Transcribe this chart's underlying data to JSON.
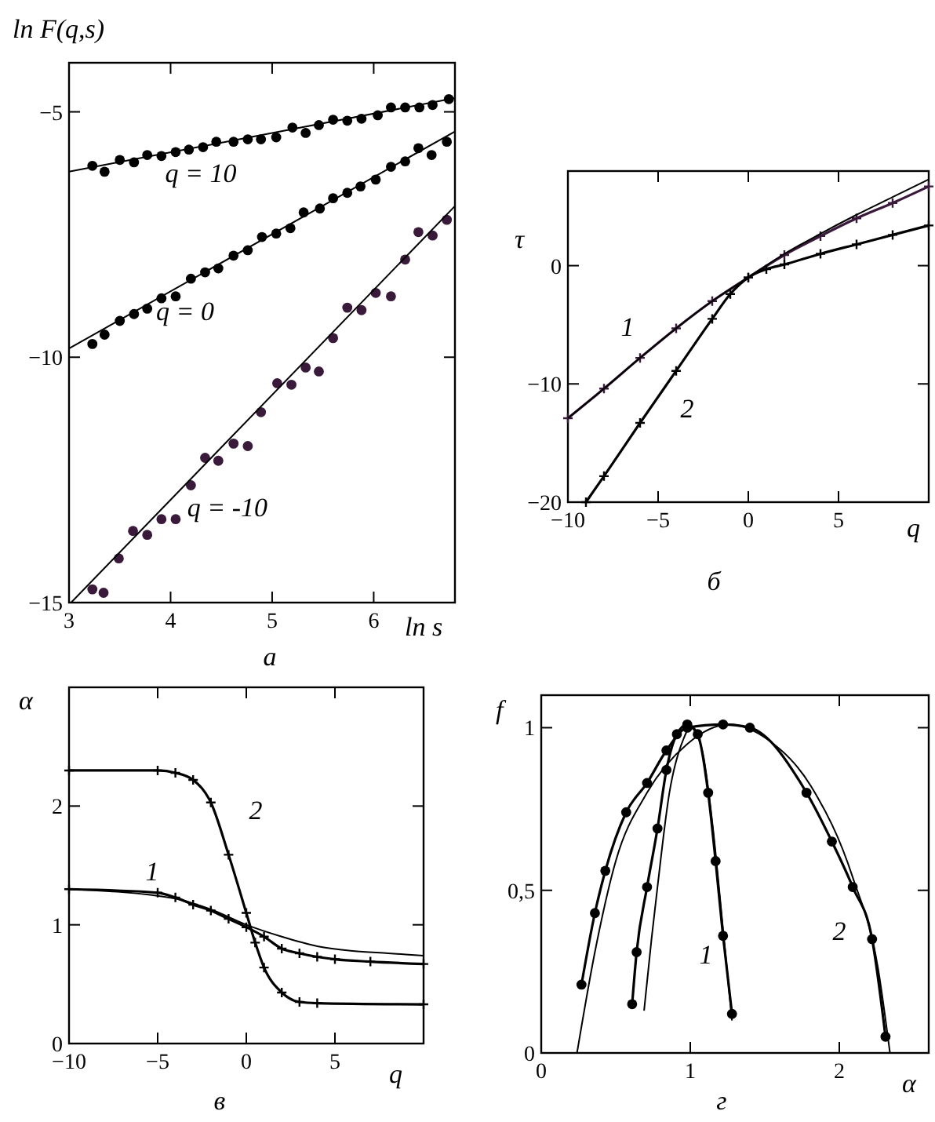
{
  "chart_data": [
    {
      "type": "scatter",
      "xlabel": "ln s",
      "ylabel": "ln F(q,s)",
      "xlim": [
        3,
        6.8
      ],
      "ylim": [
        -15,
        -4
      ],
      "xticks": [
        3,
        4,
        5,
        6
      ],
      "yticks": [
        -15,
        -10,
        -5
      ],
      "annotations": [
        "q = 10",
        "q = 0",
        "q = -10",
        "а"
      ],
      "series": [
        {
          "marker": "circle",
          "color": "#000000",
          "x": [
            3.23,
            3.35,
            3.5,
            3.64,
            3.77,
            3.91,
            4.05,
            4.18,
            4.32,
            4.45,
            4.62,
            4.76,
            4.89,
            5.04,
            5.2,
            5.33,
            5.46,
            5.6,
            5.74,
            5.88,
            6.04,
            6.17,
            6.31,
            6.45,
            6.58,
            6.74
          ],
          "values": [
            -6.1,
            -6.22,
            -5.98,
            -6.03,
            -5.88,
            -5.9,
            -5.82,
            -5.77,
            -5.72,
            -5.61,
            -5.61,
            -5.56,
            -5.56,
            -5.52,
            -5.32,
            -5.43,
            -5.27,
            -5.16,
            -5.18,
            -5.14,
            -5.07,
            -4.91,
            -4.91,
            -4.91,
            -4.86,
            -4.74
          ]
        },
        {
          "type": "line",
          "marker": "none",
          "color": "#000000",
          "x": [
            3,
            6.8
          ],
          "values": [
            -6.22,
            -4.72
          ]
        },
        {
          "marker": "circle",
          "color": "#000000",
          "x": [
            3.23,
            3.35,
            3.5,
            3.64,
            3.77,
            3.91,
            4.05,
            4.2,
            4.34,
            4.47,
            4.62,
            4.76,
            4.9,
            5.04,
            5.18,
            5.31,
            5.47,
            5.6,
            5.74,
            5.87,
            6.02,
            6.17,
            6.31,
            6.44,
            6.57,
            6.72
          ],
          "values": [
            -9.73,
            -9.54,
            -9.26,
            -9.12,
            -9.01,
            -8.8,
            -8.76,
            -8.4,
            -8.27,
            -8.19,
            -7.93,
            -7.82,
            -7.55,
            -7.48,
            -7.37,
            -7.05,
            -6.97,
            -6.76,
            -6.65,
            -6.52,
            -6.38,
            -6.12,
            -6.01,
            -5.74,
            -5.88,
            -5.61
          ]
        },
        {
          "type": "line",
          "marker": "none",
          "color": "#000000",
          "x": [
            3,
            6.8
          ],
          "values": [
            -9.82,
            -5.4
          ]
        },
        {
          "marker": "circle",
          "color": "#3a1a3a",
          "x": [
            3.23,
            3.34,
            3.49,
            3.63,
            3.77,
            3.91,
            4.05,
            4.2,
            4.34,
            4.47,
            4.62,
            4.76,
            4.89,
            5.05,
            5.19,
            5.33,
            5.46,
            5.6,
            5.74,
            5.88,
            6.02,
            6.17,
            6.31,
            6.44,
            6.58,
            6.72
          ],
          "values": [
            -14.73,
            -14.8,
            -14.1,
            -13.54,
            -13.62,
            -13.3,
            -13.3,
            -12.61,
            -12.05,
            -12.11,
            -11.76,
            -11.81,
            -11.12,
            -10.53,
            -10.56,
            -10.21,
            -10.29,
            -9.61,
            -8.99,
            -9.04,
            -8.69,
            -8.76,
            -8.01,
            -7.45,
            -7.52,
            -7.2
          ]
        },
        {
          "type": "line",
          "marker": "none",
          "color": "#000000",
          "x": [
            3.02,
            6.8
          ],
          "values": [
            -15,
            -6.92
          ]
        }
      ]
    },
    {
      "type": "line",
      "xlabel": "q",
      "ylabel": "τ",
      "xlim": [
        -10,
        10
      ],
      "ylim": [
        -20,
        8
      ],
      "xticks": [
        -10,
        -5,
        0,
        5
      ],
      "yticks": [
        -20,
        -10,
        0
      ],
      "annotations": [
        "1",
        "2",
        "б"
      ],
      "series": [
        {
          "marker": "cross",
          "color": "#3a1a3a",
          "x": [
            -10,
            -8,
            -6,
            -4,
            -2,
            0,
            2,
            4,
            6,
            8,
            10
          ],
          "values": [
            -12.9,
            -10.4,
            -7.8,
            -5.3,
            -3.0,
            -1.0,
            0.9,
            2.5,
            4.0,
            5.3,
            6.7
          ]
        },
        {
          "marker": "none",
          "color": "#000000",
          "x": [
            -10,
            -8,
            -6,
            -4,
            -2,
            0,
            2,
            4,
            6,
            8,
            10
          ],
          "values": [
            -12.9,
            -10.4,
            -7.8,
            -5.3,
            -3.0,
            -1.0,
            1.0,
            2.7,
            4.3,
            5.8,
            7.3
          ]
        },
        {
          "marker": "cross",
          "color": "#000000",
          "x": [
            -9,
            -8,
            -6,
            -4,
            -2,
            -1,
            0,
            1,
            2,
            4,
            6,
            8,
            10
          ],
          "values": [
            -20,
            -17.8,
            -13.3,
            -8.9,
            -4.5,
            -2.4,
            -1.0,
            -0.3,
            0.1,
            1.0,
            1.8,
            2.6,
            3.4
          ]
        }
      ]
    },
    {
      "type": "line",
      "xlabel": "q",
      "ylabel": "α",
      "xlim": [
        -10,
        10
      ],
      "ylim": [
        0,
        3
      ],
      "xticks": [
        -10,
        -5,
        0,
        5
      ],
      "yticks": [
        0,
        1,
        2
      ],
      "annotations": [
        "1",
        "2",
        "в"
      ],
      "series": [
        {
          "marker": "cross",
          "color": "#000000",
          "x": [
            -10,
            -5,
            -4,
            -3,
            -2,
            -1,
            0,
            0.5,
            1,
            2,
            3,
            4,
            10
          ],
          "values": [
            2.3,
            2.3,
            2.28,
            2.22,
            2.03,
            1.59,
            1.1,
            0.85,
            0.64,
            0.43,
            0.35,
            0.34,
            0.33
          ]
        },
        {
          "marker": "cross",
          "color": "#000000",
          "x": [
            -10,
            -5,
            -4,
            -3,
            -2,
            -1,
            0,
            1,
            2,
            3,
            4,
            5,
            7,
            10
          ],
          "values": [
            1.3,
            1.27,
            1.23,
            1.17,
            1.12,
            1.05,
            0.98,
            0.9,
            0.8,
            0.76,
            0.73,
            0.71,
            0.69,
            0.67
          ]
        },
        {
          "marker": "none",
          "color": "#000000",
          "x": [
            -10,
            -4,
            -2,
            0,
            2,
            4,
            6,
            8,
            10
          ],
          "values": [
            1.3,
            1.22,
            1.13,
            1.0,
            0.9,
            0.82,
            0.78,
            0.76,
            0.74
          ]
        }
      ]
    },
    {
      "type": "line",
      "xlabel": "α",
      "ylabel": "f",
      "xlim": [
        0,
        2.6
      ],
      "ylim": [
        0,
        1.1
      ],
      "xticks": [
        0,
        1,
        2
      ],
      "yticks": [
        0,
        {
          "value": 0.5,
          "label": "0,5"
        },
        1
      ],
      "annotations": [
        "1",
        "2",
        "г"
      ],
      "series": [
        {
          "marker": "circle",
          "color": "#000000",
          "x": [
            0.61,
            0.64,
            0.71,
            0.78,
            0.84,
            0.91,
            0.98,
            1.05,
            1.12,
            1.17,
            1.22,
            1.28
          ],
          "values": [
            0.15,
            0.31,
            0.51,
            0.69,
            0.87,
            0.98,
            1.01,
            0.98,
            0.8,
            0.59,
            0.36,
            0.12
          ]
        },
        {
          "marker": "none",
          "color": "#000000",
          "x": [
            0.69,
            0.74,
            0.78,
            0.86,
            0.95,
            1.0,
            1.08,
            1.15,
            1.22,
            1.28
          ],
          "values": [
            0.13,
            0.35,
            0.51,
            0.8,
            0.96,
            1.0,
            0.93,
            0.7,
            0.38,
            0.1
          ]
        },
        {
          "marker": "circle",
          "color": "#000000",
          "x": [
            0.27,
            0.36,
            0.43,
            0.57,
            0.71,
            0.84,
            0.98,
            1.22,
            1.4,
            1.78,
            1.95,
            2.09,
            2.22,
            2.31
          ],
          "values": [
            0.21,
            0.43,
            0.56,
            0.74,
            0.83,
            0.93,
            1.0,
            1.01,
            1.0,
            0.8,
            0.65,
            0.51,
            0.35,
            0.05
          ]
        },
        {
          "marker": "none",
          "color": "#000000",
          "x": [
            0.24,
            0.36,
            0.5,
            0.71,
            0.98,
            1.26,
            1.53,
            1.81,
            2.09,
            2.26,
            2.34
          ],
          "values": [
            0,
            0.31,
            0.59,
            0.8,
            0.95,
            1.01,
            0.96,
            0.82,
            0.54,
            0.26,
            0
          ]
        }
      ]
    }
  ]
}
